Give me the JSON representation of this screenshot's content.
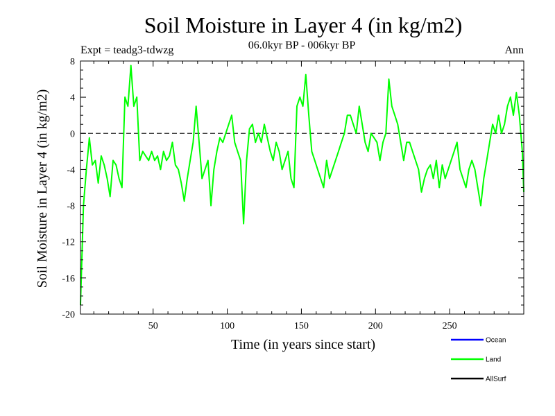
{
  "chart_data": {
    "type": "line",
    "title": "Soil Moisture in Layer 4 (in kg/m2)",
    "subtitle": "06.0kyr BP - 006kyr BP",
    "expt_label": "Expt = teadg3-tdwzg",
    "season_label": "Ann",
    "xlabel": "Time (in years since start)",
    "ylabel": "Soil Moisture in Layer 4 (in kg/m2)",
    "xlim": [
      1,
      300
    ],
    "ylim": [
      -20,
      8
    ],
    "xticks": [
      50,
      100,
      150,
      200,
      250
    ],
    "yticks": [
      8,
      4,
      0,
      -4,
      -8,
      -12,
      -16,
      -20
    ],
    "reference_line": {
      "y": 0,
      "style": "dashed"
    },
    "legend": [
      {
        "name": "Ocean",
        "color": "#0000ff"
      },
      {
        "name": "Land",
        "color": "#00ff00"
      },
      {
        "name": "AllSurf",
        "color": "#000000"
      }
    ],
    "series": [
      {
        "name": "Land",
        "color": "#00ff00",
        "points": [
          [
            1,
            -19
          ],
          [
            3,
            -8
          ],
          [
            5,
            -4
          ],
          [
            7,
            -0.5
          ],
          [
            9,
            -3.5
          ],
          [
            11,
            -3
          ],
          [
            13,
            -5.5
          ],
          [
            15,
            -2.5
          ],
          [
            17,
            -3.5
          ],
          [
            19,
            -5
          ],
          [
            21,
            -7
          ],
          [
            23,
            -3
          ],
          [
            25,
            -3.5
          ],
          [
            27,
            -5
          ],
          [
            29,
            -6
          ],
          [
            31,
            4
          ],
          [
            33,
            3
          ],
          [
            35,
            7.5
          ],
          [
            37,
            3
          ],
          [
            39,
            4
          ],
          [
            41,
            -3
          ],
          [
            43,
            -2
          ],
          [
            45,
            -2.5
          ],
          [
            47,
            -3
          ],
          [
            49,
            -2
          ],
          [
            51,
            -3
          ],
          [
            53,
            -2.5
          ],
          [
            55,
            -4
          ],
          [
            57,
            -2
          ],
          [
            59,
            -3
          ],
          [
            61,
            -2.5
          ],
          [
            63,
            -1
          ],
          [
            65,
            -3.5
          ],
          [
            67,
            -4
          ],
          [
            69,
            -5.5
          ],
          [
            71,
            -7.5
          ],
          [
            73,
            -5
          ],
          [
            75,
            -3
          ],
          [
            77,
            -1
          ],
          [
            79,
            3
          ],
          [
            81,
            -1
          ],
          [
            83,
            -5
          ],
          [
            85,
            -4
          ],
          [
            87,
            -3
          ],
          [
            89,
            -8
          ],
          [
            91,
            -4
          ],
          [
            93,
            -2
          ],
          [
            95,
            -0.5
          ],
          [
            97,
            -1
          ],
          [
            99,
            0
          ],
          [
            101,
            1
          ],
          [
            103,
            2
          ],
          [
            105,
            -1
          ],
          [
            107,
            -2
          ],
          [
            109,
            -3
          ],
          [
            111,
            -10
          ],
          [
            113,
            -3
          ],
          [
            115,
            0.5
          ],
          [
            117,
            1
          ],
          [
            119,
            -1
          ],
          [
            121,
            0
          ],
          [
            123,
            -1
          ],
          [
            125,
            1
          ],
          [
            127,
            -0.5
          ],
          [
            129,
            -2
          ],
          [
            131,
            -3
          ],
          [
            133,
            -1
          ],
          [
            135,
            -2
          ],
          [
            137,
            -4
          ],
          [
            139,
            -3
          ],
          [
            141,
            -2
          ],
          [
            143,
            -5
          ],
          [
            145,
            -6
          ],
          [
            147,
            3
          ],
          [
            149,
            4
          ],
          [
            151,
            3
          ],
          [
            153,
            6.5
          ],
          [
            155,
            2
          ],
          [
            157,
            -2
          ],
          [
            159,
            -3
          ],
          [
            161,
            -4
          ],
          [
            163,
            -5
          ],
          [
            165,
            -6
          ],
          [
            167,
            -3
          ],
          [
            169,
            -5
          ],
          [
            171,
            -4
          ],
          [
            173,
            -3
          ],
          [
            175,
            -2
          ],
          [
            177,
            -1
          ],
          [
            179,
            0
          ],
          [
            181,
            2
          ],
          [
            183,
            2
          ],
          [
            185,
            1
          ],
          [
            187,
            0
          ],
          [
            189,
            3
          ],
          [
            191,
            1
          ],
          [
            193,
            -1
          ],
          [
            195,
            -2
          ],
          [
            197,
            0
          ],
          [
            199,
            -0.5
          ],
          [
            201,
            -1
          ],
          [
            203,
            -3
          ],
          [
            205,
            -1
          ],
          [
            207,
            0
          ],
          [
            209,
            6
          ],
          [
            211,
            3
          ],
          [
            213,
            2
          ],
          [
            215,
            1
          ],
          [
            217,
            -1
          ],
          [
            219,
            -3
          ],
          [
            221,
            -1
          ],
          [
            223,
            -1
          ],
          [
            225,
            -2
          ],
          [
            227,
            -3
          ],
          [
            229,
            -4
          ],
          [
            231,
            -6.5
          ],
          [
            233,
            -5
          ],
          [
            235,
            -4
          ],
          [
            237,
            -3.5
          ],
          [
            239,
            -5
          ],
          [
            241,
            -3
          ],
          [
            243,
            -6
          ],
          [
            245,
            -3.5
          ],
          [
            247,
            -5
          ],
          [
            249,
            -4
          ],
          [
            251,
            -3
          ],
          [
            253,
            -2
          ],
          [
            255,
            -1
          ],
          [
            257,
            -4
          ],
          [
            259,
            -5
          ],
          [
            261,
            -6
          ],
          [
            263,
            -4
          ],
          [
            265,
            -3
          ],
          [
            267,
            -4
          ],
          [
            269,
            -6
          ],
          [
            271,
            -8
          ],
          [
            273,
            -5
          ],
          [
            275,
            -3
          ],
          [
            277,
            -1
          ],
          [
            279,
            1
          ],
          [
            281,
            0
          ],
          [
            283,
            2
          ],
          [
            285,
            0
          ],
          [
            287,
            1
          ],
          [
            289,
            3
          ],
          [
            291,
            4
          ],
          [
            293,
            2
          ],
          [
            295,
            4.5
          ],
          [
            297,
            2
          ],
          [
            299,
            -2
          ],
          [
            300,
            -6.5
          ]
        ]
      }
    ]
  }
}
